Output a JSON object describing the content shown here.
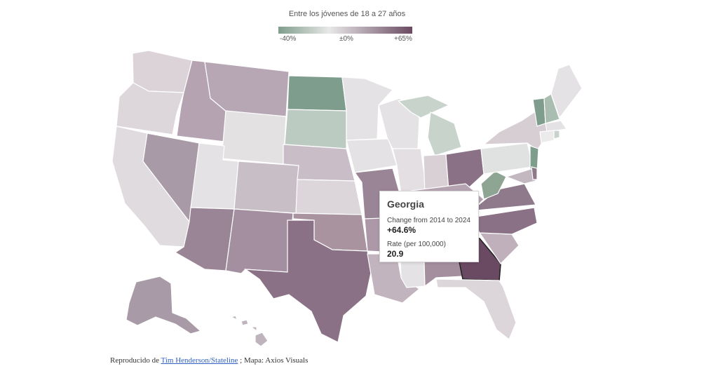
{
  "legend": {
    "title": "Entre los jóvenes de 18 a 27 años",
    "min_label": "-40%",
    "mid_label": "±0%",
    "max_label": "+65%",
    "colors": [
      "#7f9d8c",
      "#e8e8e8",
      "#6a4a62"
    ]
  },
  "map": {
    "type": "choropleth",
    "region": "United States",
    "highlighted": "Georgia"
  },
  "tooltip": {
    "state": "Georgia",
    "change_label": "Change from 2014 to 2024",
    "change_value": "+64.6%",
    "rate_label": "Rate (per 100,000)",
    "rate_value": "20.9"
  },
  "credit": {
    "prefix": "Reproducido de ",
    "link_text": "Tim Henderson/Stateline",
    "suffix": " ; Mapa: Axios Visuals"
  },
  "colors": {
    "negative_strong": "#7f9d8c",
    "negative_light": "#bccbc2",
    "neutral": "#e4e2e4",
    "positive_light": "#cfc4cc",
    "positive_mid": "#b7a4b2",
    "positive_strong": "#967e90",
    "positive_max": "#6a4a62"
  }
}
